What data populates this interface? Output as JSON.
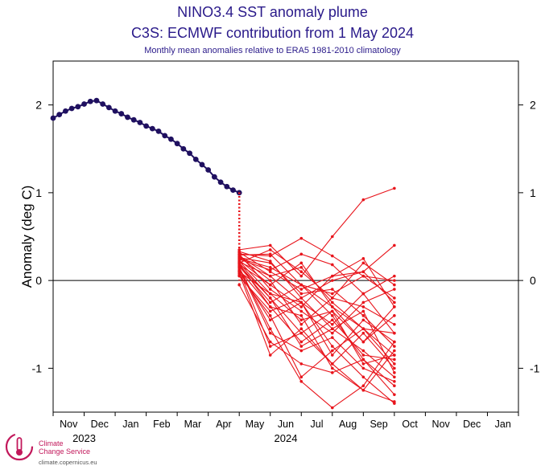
{
  "header": {
    "title": "NINO3.4 SST anomaly plume",
    "subtitle": "C3S: ECMWF contribution from 1 May 2024",
    "caption": "Monthly mean anomalies relative to ERA5 1981-2010 climatology"
  },
  "logo": {
    "line1": "Climate",
    "line2": "Change Service",
    "url": "climate.copernicus.eu"
  },
  "colors": {
    "title": "#2a1a8a",
    "observed": "#1f1060",
    "forecast": "#e8141b",
    "axis": "#000000"
  },
  "chart_data": {
    "type": "line",
    "ylabel": "Anomaly (deg C)",
    "ylim": [
      -1.5,
      2.5
    ],
    "yticks": [
      -1,
      0,
      1,
      2
    ],
    "xlim": [
      0,
      15
    ],
    "x_ticks": [
      {
        "x": 0.5,
        "label": "Nov"
      },
      {
        "x": 1.5,
        "label": "Dec"
      },
      {
        "x": 2.5,
        "label": "Jan"
      },
      {
        "x": 3.5,
        "label": "Feb"
      },
      {
        "x": 4.5,
        "label": "Mar"
      },
      {
        "x": 5.5,
        "label": "Apr"
      },
      {
        "x": 6.5,
        "label": "May"
      },
      {
        "x": 7.5,
        "label": "Jun"
      },
      {
        "x": 8.5,
        "label": "Jul"
      },
      {
        "x": 9.5,
        "label": "Aug"
      },
      {
        "x": 10.5,
        "label": "Sep"
      },
      {
        "x": 11.5,
        "label": "Oct"
      },
      {
        "x": 12.5,
        "label": "Nov"
      },
      {
        "x": 13.5,
        "label": "Dec"
      },
      {
        "x": 14.5,
        "label": "Jan"
      }
    ],
    "year_labels": [
      {
        "x": 1.0,
        "label": "2023"
      },
      {
        "x": 7.5,
        "label": "2024"
      }
    ],
    "zero_line": 0,
    "observed": {
      "x": [
        0.0,
        0.2,
        0.4,
        0.6,
        0.8,
        1.0,
        1.2,
        1.4,
        1.6,
        1.8,
        2.0,
        2.2,
        2.4,
        2.6,
        2.8,
        3.0,
        3.2,
        3.4,
        3.6,
        3.8,
        4.0,
        4.2,
        4.4,
        4.6,
        4.8,
        5.0,
        5.2,
        5.4,
        5.6,
        5.8,
        6.0
      ],
      "y": [
        1.85,
        1.89,
        1.93,
        1.96,
        1.98,
        2.01,
        2.04,
        2.05,
        2.01,
        1.97,
        1.93,
        1.9,
        1.86,
        1.83,
        1.8,
        1.76,
        1.73,
        1.7,
        1.65,
        1.61,
        1.56,
        1.5,
        1.45,
        1.38,
        1.32,
        1.26,
        1.18,
        1.12,
        1.07,
        1.03,
        1.0
      ]
    },
    "forecast_members": [
      [
        0.25,
        0.15,
        -0.05,
        -0.3,
        -0.55,
        -0.85
      ],
      [
        0.3,
        0.28,
        0.48,
        0.28,
        0.05,
        -0.2
      ],
      [
        0.2,
        -0.2,
        -0.6,
        -0.95,
        -1.25,
        -1.38
      ],
      [
        0.15,
        -0.55,
        -1.15,
        -1.45,
        -1.2,
        -0.7
      ],
      [
        0.32,
        0.1,
        -0.1,
        0.05,
        0.25,
        -0.3
      ],
      [
        0.05,
        -0.35,
        -0.2,
        -0.55,
        -0.35,
        -1.05
      ],
      [
        0.22,
        -0.15,
        -0.45,
        -0.35,
        -0.7,
        -0.4
      ],
      [
        0.35,
        0.4,
        0.05,
        0.5,
        0.92,
        1.05
      ],
      [
        0.18,
        -0.05,
        -0.3,
        0.05,
        0.1,
        0.4
      ],
      [
        0.1,
        -0.45,
        -0.25,
        -0.75,
        -1.1,
        -1.4
      ],
      [
        0.26,
        0.2,
        -0.15,
        -0.1,
        -0.4,
        -0.75
      ],
      [
        -0.05,
        -0.7,
        -0.95,
        -1.05,
        -0.9,
        -1.2
      ],
      [
        0.28,
        0.05,
        0.15,
        -0.25,
        -0.55,
        -0.6
      ],
      [
        0.12,
        -0.3,
        -0.7,
        -0.45,
        -0.85,
        -0.9
      ],
      [
        0.24,
        0.12,
        0.3,
        0.18,
        -0.15,
        0.05
      ],
      [
        0.08,
        -0.85,
        -0.55,
        -0.95,
        -0.6,
        -1.0
      ],
      [
        0.3,
        -0.1,
        -0.35,
        -0.6,
        -0.25,
        -0.1
      ],
      [
        0.16,
        -0.25,
        -0.05,
        -0.4,
        -0.9,
        -1.3
      ],
      [
        0.2,
        0.35,
        0.1,
        -0.2,
        0.2,
        -0.05
      ],
      [
        0.14,
        -0.6,
        -0.8,
        -0.65,
        -1.0,
        -1.15
      ],
      [
        0.27,
        0.0,
        -0.5,
        -0.2,
        -0.3,
        -0.5
      ],
      [
        0.1,
        -0.15,
        -0.25,
        -0.85,
        -0.45,
        -0.7
      ],
      [
        0.33,
        0.22,
        -0.2,
        0.0,
        0.1,
        -0.25
      ],
      [
        0.06,
        -0.4,
        -1.1,
        -0.8,
        -0.55,
        -0.95
      ],
      [
        0.23,
        -0.05,
        0.2,
        -0.3,
        -0.7,
        -0.3
      ],
      [
        0.19,
        -0.3,
        -0.4,
        -1.0,
        -1.25,
        -0.8
      ],
      [
        0.29,
        0.3,
        -0.05,
        -0.15,
        0.05,
        0.0
      ],
      [
        0.11,
        -0.75,
        -0.6,
        -0.35,
        -0.95,
        -0.85
      ],
      [
        0.21,
        0.05,
        -0.25,
        -0.5,
        -0.15,
        -0.6
      ],
      [
        0.17,
        -0.2,
        -0.75,
        -0.55,
        -0.8,
        -1.1
      ]
    ]
  }
}
